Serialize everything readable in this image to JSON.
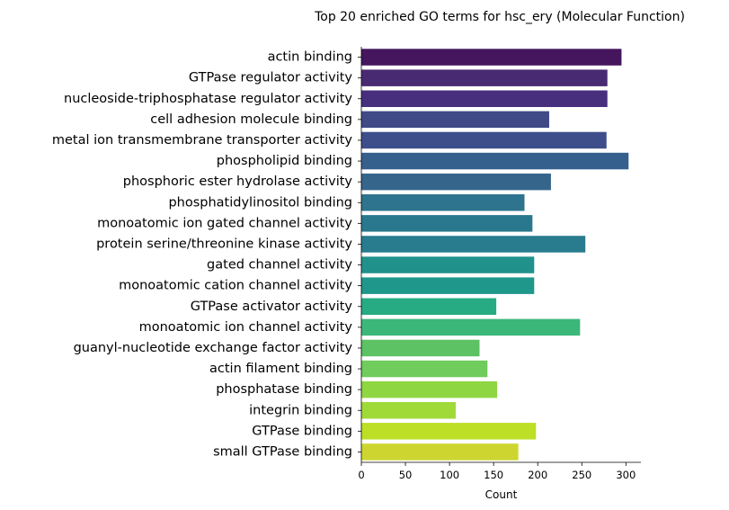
{
  "chart_data": {
    "type": "bar",
    "orientation": "horizontal",
    "title": "Top 20 enriched GO terms for hsc_ery (Molecular Function)",
    "xlabel": "Count",
    "ylabel": "",
    "xlim": [
      0,
      317
    ],
    "xticks": [
      0,
      50,
      100,
      150,
      200,
      250,
      300
    ],
    "grid": false,
    "legend": "none",
    "categories": [
      "actin binding",
      "GTPase regulator activity",
      "nucleoside-triphosphatase regulator activity",
      "cell adhesion molecule binding",
      "metal ion transmembrane transporter activity",
      "phospholipid binding",
      "phosphoric ester hydrolase activity",
      "phosphatidylinositol binding",
      "monoatomic ion gated channel activity",
      "protein serine/threonine kinase activity",
      "gated channel activity",
      "monoatomic cation channel activity",
      "GTPase activator activity",
      "monoatomic ion channel activity",
      "guanyl-nucleotide exchange factor activity",
      "actin filament binding",
      "phosphatase binding",
      "integrin binding",
      "GTPase binding",
      "small GTPase binding"
    ],
    "values": [
      295,
      279,
      279,
      213,
      278,
      303,
      215,
      185,
      194,
      254,
      196,
      196,
      153,
      248,
      134,
      143,
      154,
      107,
      198,
      178
    ],
    "colors": [
      "#45155e",
      "#482a72",
      "#472f7d",
      "#3f4a87",
      "#3d4e8a",
      "#35608d",
      "#36658c",
      "#2e748e",
      "#2a788e",
      "#287c8e",
      "#21918c",
      "#20978b",
      "#27ab82",
      "#3bb77a",
      "#5cc263",
      "#6fcc5d",
      "#8fd643",
      "#a0da39",
      "#bddf26",
      "#cdd630"
    ],
    "axis_color": "#000000",
    "background": "#ffffff"
  }
}
